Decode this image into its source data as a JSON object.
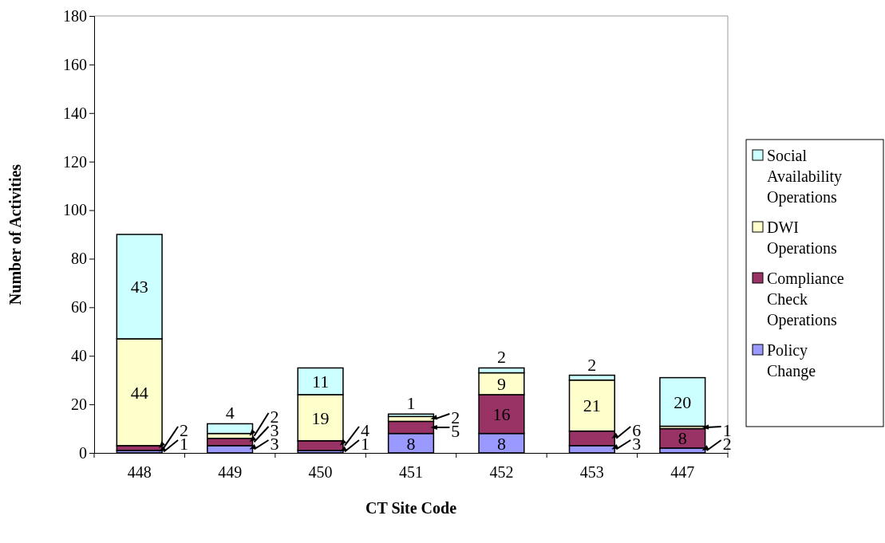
{
  "chart_data": {
    "type": "bar",
    "stacked": true,
    "xlabel": "CT Site Code",
    "ylabel": "Number of Activities",
    "categories": [
      "448",
      "449",
      "450",
      "451",
      "452",
      "453",
      "447"
    ],
    "series": [
      {
        "name": "Policy Change",
        "color": "#9999ff",
        "values": [
          1,
          3,
          1,
          8,
          8,
          3,
          2
        ]
      },
      {
        "name": "Compliance Check Operations",
        "color": "#993366",
        "values": [
          2,
          3,
          4,
          5,
          16,
          6,
          8
        ]
      },
      {
        "name": "DWI Operations",
        "color": "#ffffcc",
        "values": [
          44,
          2,
          19,
          2,
          9,
          21,
          1
        ]
      },
      {
        "name": "Social Availability Operations",
        "color": "#ccffff",
        "values": [
          43,
          4,
          11,
          1,
          2,
          2,
          20
        ]
      }
    ],
    "ylim": [
      0,
      180
    ],
    "yticks": [
      0,
      20,
      40,
      60,
      80,
      100,
      120,
      140,
      160,
      180
    ],
    "grid": false,
    "legend": "right",
    "data_labels": true
  }
}
